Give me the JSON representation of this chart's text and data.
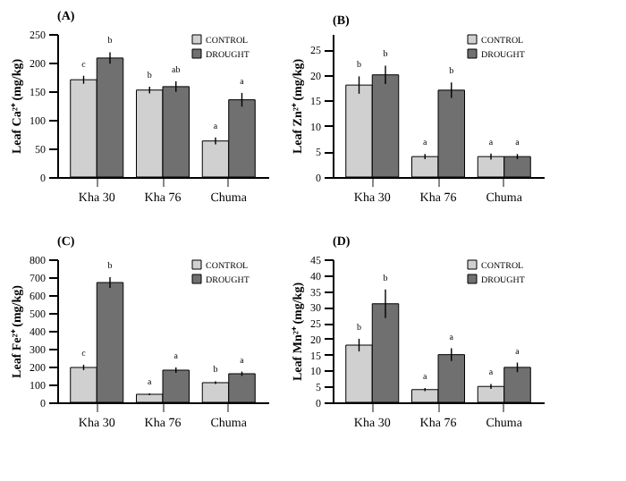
{
  "chart_data": [
    {
      "type": "bar",
      "title": "(A)",
      "ylabel": "Leaf Ca²⁺ (mg/kg)",
      "categories": [
        "Kha 30",
        "Kha 76",
        "Chuma"
      ],
      "ylim": [
        0,
        250
      ],
      "yticks": [
        0,
        50,
        100,
        150,
        200,
        250
      ],
      "grid": false,
      "legend": "top right",
      "series": [
        {
          "name": "CONTROL",
          "color": "#d0d0d0",
          "values": [
            170,
            152,
            63
          ],
          "errors": [
            7,
            6,
            6
          ],
          "value_labels": [
            "c",
            "b",
            "a"
          ]
        },
        {
          "name": "DROUGHT",
          "color": "#707070",
          "values": [
            208,
            158,
            135
          ],
          "errors": [
            10,
            9,
            12
          ],
          "value_labels": [
            "b",
            "ab",
            "a"
          ]
        }
      ]
    },
    {
      "type": "bar",
      "title": "(B)",
      "ylabel": "Leaf Zn²⁺ (mg/kg)",
      "categories": [
        "Kha 30",
        "Kha 76",
        "Chuma"
      ],
      "ylim": [
        0,
        28
      ],
      "yticks": [
        0,
        5,
        10,
        15,
        20,
        25
      ],
      "grid": false,
      "legend": "top right",
      "series": [
        {
          "name": "CONTROL",
          "color": "#d0d0d0",
          "values": [
            18,
            4,
            4
          ],
          "errors": [
            1.7,
            0.5,
            0.6
          ],
          "value_labels": [
            "b",
            "a",
            "a"
          ]
        },
        {
          "name": "DROUGHT",
          "color": "#707070",
          "values": [
            20,
            17,
            4
          ],
          "errors": [
            1.8,
            1.5,
            0.5
          ],
          "value_labels": [
            "b",
            "b",
            "a"
          ]
        }
      ]
    },
    {
      "type": "bar",
      "title": "(C)",
      "ylabel": "Leaf Fe²⁺ (mg/kg)",
      "categories": [
        "Kha 30",
        "Kha 76",
        "Chuma"
      ],
      "ylim": [
        0,
        800
      ],
      "yticks": [
        0,
        100,
        200,
        300,
        400,
        500,
        600,
        700,
        800
      ],
      "grid": false,
      "legend": "top right",
      "series": [
        {
          "name": "CONTROL",
          "color": "#d0d0d0",
          "values": [
            195,
            45,
            110
          ],
          "errors": [
            15,
            5,
            8
          ],
          "value_labels": [
            "c",
            "a",
            "b"
          ]
        },
        {
          "name": "DROUGHT",
          "color": "#707070",
          "values": [
            670,
            180,
            160
          ],
          "errors": [
            30,
            15,
            12
          ],
          "value_labels": [
            "b",
            "a",
            "a"
          ]
        }
      ]
    },
    {
      "type": "bar",
      "title": "(D)",
      "ylabel": "Leaf Mn²⁺ (mg/kg)",
      "categories": [
        "Kha 30",
        "Kha 76",
        "Chuma"
      ],
      "ylim": [
        0,
        45
      ],
      "yticks": [
        0,
        5,
        10,
        15,
        20,
        25,
        30,
        35,
        40,
        45
      ],
      "grid": false,
      "legend": "top right",
      "series": [
        {
          "name": "CONTROL",
          "color": "#d0d0d0",
          "values": [
            18,
            4,
            5
          ],
          "errors": [
            2,
            0.5,
            0.8
          ],
          "value_labels": [
            "b",
            "a",
            "a"
          ]
        },
        {
          "name": "DROUGHT",
          "color": "#707070",
          "values": [
            31,
            15,
            11
          ],
          "errors": [
            4.5,
            2,
            1.5
          ],
          "value_labels": [
            "b",
            "a",
            "a"
          ]
        }
      ]
    }
  ]
}
